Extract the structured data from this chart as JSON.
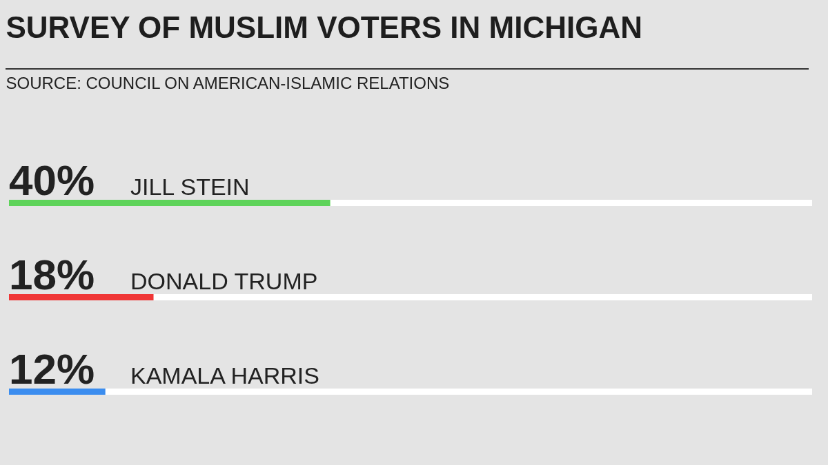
{
  "chart_data": {
    "type": "bar",
    "orientation": "horizontal",
    "title": "SURVEY OF MUSLIM VOTERS IN MICHIGAN",
    "subtitle": "SOURCE: COUNCIL ON AMERICAN-ISLAMIC RELATIONS",
    "categories": [
      "JILL STEIN",
      "DONALD TRUMP",
      "KAMALA HARRIS"
    ],
    "values": [
      40,
      18,
      12
    ],
    "colors": [
      "#5ed35a",
      "#ef3636",
      "#3b8def"
    ],
    "value_labels": [
      "40%",
      "18%",
      "12%"
    ],
    "xlim": [
      0,
      100
    ],
    "tick_labels": false
  }
}
